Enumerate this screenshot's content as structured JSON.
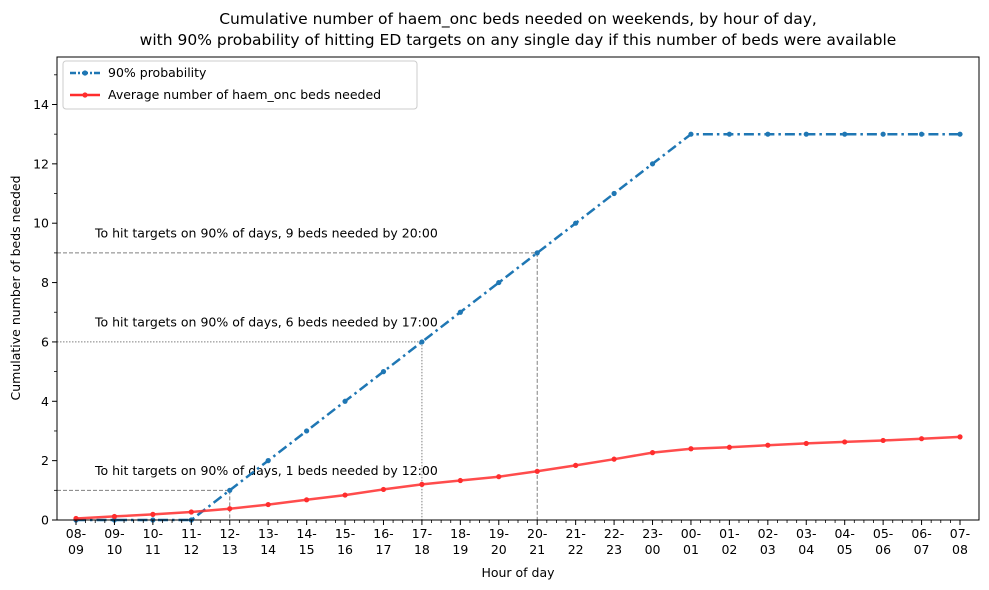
{
  "chart_data": {
    "type": "line",
    "title": [
      "Cumulative number of haem_onc beds needed on weekends, by hour of day,",
      "with 90% probability of hitting ED targets on any single day if this number of beds were available"
    ],
    "xlabel": "Hour of day",
    "ylabel": "Cumulative number of beds needed",
    "ylim": [
      0,
      15.6
    ],
    "yticks": [
      0,
      2,
      4,
      6,
      8,
      10,
      12,
      14
    ],
    "grid": false,
    "legend_position": "top-left",
    "categories": [
      "08-\n09",
      "09-\n10",
      "10-\n11",
      "11-\n12",
      "12-\n13",
      "13-\n14",
      "14-\n15",
      "15-\n16",
      "16-\n17",
      "17-\n18",
      "18-\n19",
      "19-\n20",
      "20-\n21",
      "21-\n22",
      "22-\n23",
      "23-\n00",
      "00-\n01",
      "01-\n02",
      "02-\n03",
      "03-\n04",
      "04-\n05",
      "05-\n06",
      "06-\n07",
      "07-\n08"
    ],
    "series": [
      {
        "name": "90% probability",
        "color": "#1f77b4",
        "style": "dashdot",
        "values": [
          0,
          0,
          0,
          0,
          1,
          2,
          3,
          4,
          5,
          6,
          7,
          8,
          9,
          10,
          11,
          12,
          13,
          13,
          13,
          13,
          13,
          13,
          13,
          13
        ]
      },
      {
        "name": "Average number of haem_onc beds needed",
        "color": "#ff2d2d",
        "style": "solid",
        "values": [
          0.05,
          0.12,
          0.19,
          0.27,
          0.38,
          0.52,
          0.68,
          0.84,
          1.03,
          1.2,
          1.33,
          1.46,
          1.64,
          1.84,
          2.05,
          2.27,
          2.4,
          2.45,
          2.52,
          2.58,
          2.63,
          2.68,
          2.74,
          2.8
        ]
      }
    ],
    "annotations": [
      {
        "text": "To hit targets on 90% of days, 1 beds needed by 12:00",
        "x_index": 4,
        "y": 1,
        "label_y": 1.65,
        "style": "dashed"
      },
      {
        "text": "To hit targets on 90% of days, 6 beds needed by 17:00",
        "x_index": 9,
        "y": 6,
        "label_y": 6.65,
        "style": "dotted"
      },
      {
        "text": "To hit targets on 90% of days, 9 beds needed by 20:00",
        "x_index": 12,
        "y": 9,
        "label_y": 9.65,
        "style": "dashed"
      }
    ]
  }
}
